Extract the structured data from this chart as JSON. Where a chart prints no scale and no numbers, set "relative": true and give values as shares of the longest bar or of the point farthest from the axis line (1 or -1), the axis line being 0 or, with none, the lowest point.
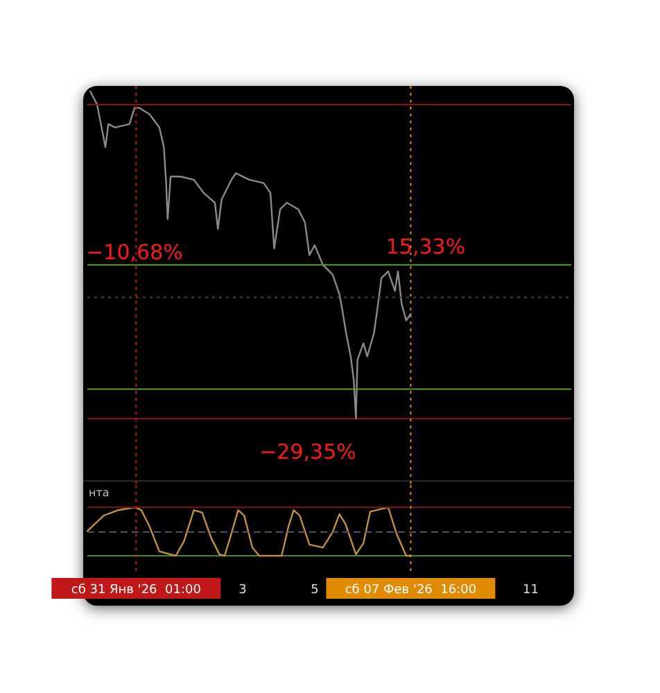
{
  "chart_data": [
    {
      "type": "line",
      "relative": true,
      "xlim": [
        "2026-01-29T16:30",
        "2026-02-12T03:00"
      ],
      "x": [
        "2026-01-29T18:30",
        "2026-01-29T23:00",
        "2026-01-30T04:30",
        "2026-01-30T06:30",
        "2026-01-30T11:00",
        "2026-01-30T20:30",
        "2026-01-31T00:00",
        "2026-01-31T03:00",
        "2026-01-31T10:00",
        "2026-01-31T16:30",
        "2026-01-31T19:30",
        "2026-01-31T21:00",
        "2026-01-31T22:00",
        "2026-02-01T00:00",
        "2026-02-01T06:30",
        "2026-02-01T15:30",
        "2026-02-01T22:00",
        "2026-02-02T05:30",
        "2026-02-02T07:30",
        "2026-02-02T10:00",
        "2026-02-02T16:30",
        "2026-02-02T19:30",
        "2026-02-03T04:30",
        "2026-02-03T14:00",
        "2026-02-03T18:30",
        "2026-02-03T21:00",
        "2026-02-04T01:00",
        "2026-02-04T05:30",
        "2026-02-04T13:00",
        "2026-02-04T17:30",
        "2026-02-04T20:30",
        "2026-02-05T00:00",
        "2026-02-05T05:30",
        "2026-02-05T12:00",
        "2026-02-05T16:30",
        "2026-02-05T18:30",
        "2026-02-05T21:00",
        "2026-02-06T00:00",
        "2026-02-06T02:00",
        "2026-02-06T03:30",
        "2026-02-06T04:30",
        "2026-02-06T08:30",
        "2026-02-06T11:00",
        "2026-02-06T15:30",
        "2026-02-06T18:30",
        "2026-02-06T20:30",
        "2026-02-07T01:00",
        "2026-02-07T05:30",
        "2026-02-07T07:30",
        "2026-02-07T10:00",
        "2026-02-07T13:00",
        "2026-02-07T16:00"
      ],
      "series": [
        {
          "color": "#8a8a8a",
          "values": [
            1.0,
            0.96,
            0.83,
            0.9,
            0.89,
            0.9,
            0.95,
            0.95,
            0.93,
            0.89,
            0.83,
            0.72,
            0.61,
            0.74,
            0.74,
            0.73,
            0.69,
            0.66,
            0.58,
            0.67,
            0.73,
            0.75,
            0.73,
            0.72,
            0.69,
            0.52,
            0.64,
            0.66,
            0.64,
            0.6,
            0.5,
            0.53,
            0.47,
            0.44,
            0.38,
            0.33,
            0.26,
            0.19,
            0.12,
            0.0,
            0.18,
            0.23,
            0.19,
            0.26,
            0.36,
            0.43,
            0.45,
            0.39,
            0.45,
            0.35,
            0.3,
            0.32
          ]
        }
      ],
      "ref_lines": [
        {
          "axis": "y",
          "value": 0.96,
          "color": "#8b1010",
          "line_style": "solid"
        },
        {
          "axis": "y",
          "value": 0.47,
          "color": "#5a9e2a",
          "line_style": "solid"
        },
        {
          "axis": "y",
          "value": 0.09,
          "color": "#5a9e2a",
          "line_style": "solid"
        },
        {
          "axis": "y",
          "value": 0.37,
          "color": "#444444",
          "line_style": "dotted"
        },
        {
          "axis": "x",
          "value": "2026-01-31T01:00",
          "color": "#c01818",
          "line_style": "dotted"
        },
        {
          "axis": "x",
          "value": "2026-02-07T16:00",
          "color": "#e08a00",
          "line_style": "dotted"
        }
      ],
      "annotations": [
        "−10,68%",
        "15,33%",
        "−29,35%"
      ]
    },
    {
      "type": "line",
      "title": "нта",
      "relative": true,
      "xlim": [
        "2026-01-29T16:30",
        "2026-02-12T03:00"
      ],
      "xticks": [
        {
          "value": "2026-01-31T01:00",
          "label": "сб 31 Янв '26  01:00"
        },
        {
          "value": "2026-02-03T00:00",
          "label": "3"
        },
        {
          "value": "2026-02-05T00:00",
          "label": "5"
        },
        {
          "value": "2026-02-07T16:00",
          "label": "сб 07 Фев '26  16:00"
        },
        {
          "value": "2026-02-11T00:00",
          "label": "11"
        }
      ],
      "x": [
        "2026-01-29T16:30",
        "2026-01-30T03:30",
        "2026-01-30T13:00",
        "2026-01-31T00:00",
        "2026-01-31T04:30",
        "2026-01-31T10:00",
        "2026-01-31T16:30",
        "2026-02-01T03:30",
        "2026-02-01T09:00",
        "2026-02-01T15:30",
        "2026-02-01T21:00",
        "2026-02-02T03:00",
        "2026-02-02T08:30",
        "2026-02-02T12:00",
        "2026-02-02T16:30",
        "2026-02-02T21:00",
        "2026-02-03T01:00",
        "2026-02-03T06:30",
        "2026-02-03T11:00",
        "2026-02-04T02:00",
        "2026-02-04T06:30",
        "2026-02-04T10:00",
        "2026-02-04T14:00",
        "2026-02-04T20:30",
        "2026-02-05T05:30",
        "2026-02-05T12:00",
        "2026-02-05T16:30",
        "2026-02-05T20:30",
        "2026-02-06T03:30",
        "2026-02-06T08:30",
        "2026-02-06T13:00",
        "2026-02-07T01:00",
        "2026-02-07T06:30",
        "2026-02-07T13:00",
        "2026-02-07T16:00"
      ],
      "series": [
        {
          "color": "#c09040",
          "values": [
            0.51,
            0.83,
            0.94,
            1.0,
            0.94,
            0.6,
            0.09,
            0.0,
            0.31,
            0.94,
            0.89,
            0.37,
            0.03,
            0.0,
            0.46,
            0.94,
            0.83,
            0.17,
            0.0,
            0.0,
            0.6,
            0.94,
            0.83,
            0.23,
            0.17,
            0.49,
            0.86,
            0.66,
            0.03,
            0.26,
            0.91,
            1.0,
            0.46,
            0.0,
            0.0
          ]
        }
      ],
      "ref_lines": [
        {
          "axis": "y",
          "value": 1.0,
          "color": "#7a1010",
          "line_style": "solid"
        },
        {
          "axis": "y",
          "value": 0.49,
          "color": "#555577",
          "line_style": "dashed"
        },
        {
          "axis": "x",
          "value": "2026-01-31T01:00",
          "color": "#c01818",
          "line_style": "dotted"
        },
        {
          "axis": "x",
          "value": "2026-02-07T16:00",
          "color": "#e08a00",
          "line_style": "dotted"
        }
      ]
    }
  ]
}
